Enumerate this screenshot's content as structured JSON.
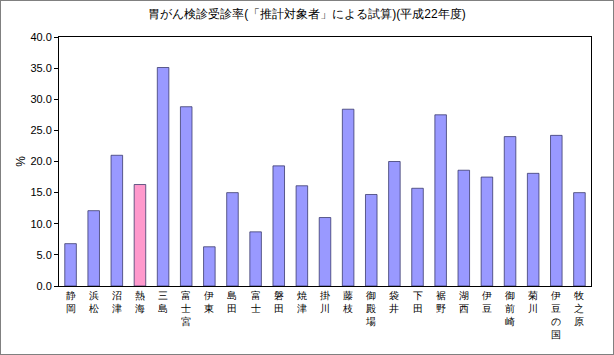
{
  "chart_data": {
    "type": "bar",
    "title": "胃がん検診受診率(「推計対象者」による試算)(平成22年度)",
    "y_label": "%",
    "categories": [
      "静岡",
      "浜松",
      "沼津",
      "熱海",
      "三島",
      "富士宮",
      "伊東",
      "島田",
      "富士",
      "磐田",
      "焼津",
      "掛川",
      "藤枝",
      "御殿場",
      "袋井",
      "下田",
      "裾野",
      "湖西",
      "伊豆",
      "御前崎",
      "菊川",
      "伊豆の国",
      "牧之原"
    ],
    "values": [
      6.8,
      12.1,
      21.0,
      16.3,
      35.1,
      28.8,
      6.3,
      15.0,
      8.7,
      19.3,
      16.1,
      11.0,
      28.4,
      14.7,
      20.0,
      15.7,
      27.5,
      18.6,
      17.5,
      24.0,
      18.1,
      24.2,
      15.0
    ],
    "colors": [
      "#9999ff",
      "#9999ff",
      "#9999ff",
      "#ff99cc",
      "#9999ff",
      "#9999ff",
      "#9999ff",
      "#9999ff",
      "#9999ff",
      "#9999ff",
      "#9999ff",
      "#9999ff",
      "#9999ff",
      "#9999ff",
      "#9999ff",
      "#9999ff",
      "#9999ff",
      "#9999ff",
      "#9999ff",
      "#9999ff",
      "#9999ff",
      "#9999ff",
      "#9999ff"
    ],
    "ylim": [
      0,
      40
    ],
    "yticks": [
      {
        "value": 0,
        "label": "0.0"
      },
      {
        "value": 5,
        "label": "5.0"
      },
      {
        "value": 10,
        "label": "10.0"
      },
      {
        "value": 15,
        "label": "15.0"
      },
      {
        "value": 20,
        "label": "20.0"
      },
      {
        "value": 25,
        "label": "25.0"
      },
      {
        "value": 30,
        "label": "30.0"
      },
      {
        "value": 35,
        "label": "35.0"
      },
      {
        "value": 40,
        "label": "40.0"
      }
    ],
    "grid": false
  }
}
